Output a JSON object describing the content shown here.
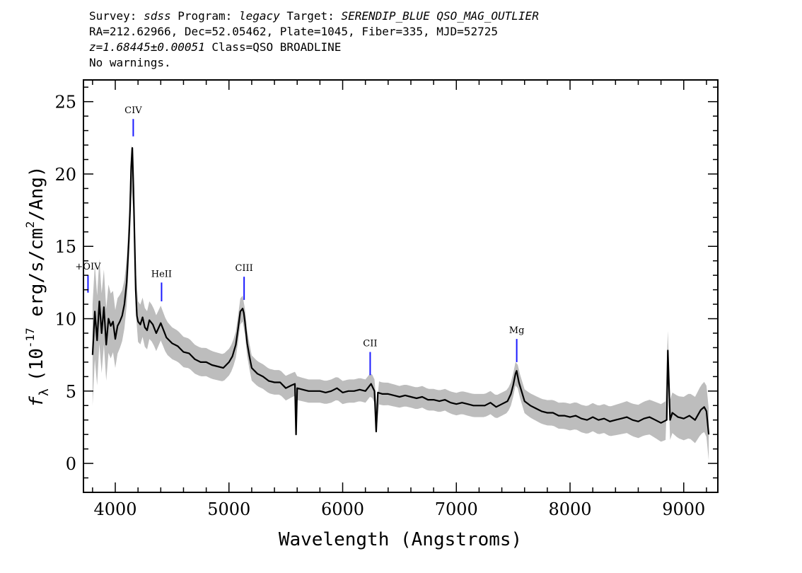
{
  "header": {
    "survey_label": "Survey:",
    "survey": "sdss",
    "program_label": "Program:",
    "program": "legacy",
    "target_label": "Target:",
    "target": "SERENDIP_BLUE QSO_MAG_OUTLIER",
    "coords": "RA=212.62966, Dec=52.05462, Plate=1045, Fiber=335, MJD=52725",
    "redshift": "z=1.68445±0.00051",
    "class_text": "Class=QSO BROADLINE",
    "warnings": "No warnings."
  },
  "chart_data": {
    "type": "line",
    "xlabel": "Wavelength (Angstroms)",
    "ylabel": "f_λ (10^-17 erg/s/cm²/Ang)",
    "ylabel_parts": {
      "f": "f",
      "lambda": "λ",
      "prefix": "(10",
      "exp1": "-17",
      "mid": " erg/s/cm",
      "exp2": "2",
      "suffix": "/Ang)"
    },
    "xlim": [
      3720,
      9300
    ],
    "ylim": [
      -2,
      26.5
    ],
    "x_ticks": [
      4000,
      5000,
      6000,
      7000,
      8000,
      9000
    ],
    "y_ticks": [
      0,
      5,
      10,
      15,
      20,
      25
    ],
    "x_tick_labels": [
      "4000",
      "5000",
      "6000",
      "7000",
      "8000",
      "9000"
    ],
    "y_tick_labels": [
      "0",
      "5",
      "10",
      "15",
      "20",
      "25"
    ],
    "colors": {
      "flux": "#000000",
      "error": "#bdbdbd",
      "lines": "#1a1aff"
    },
    "series": [
      {
        "role": "flux",
        "x": [
          3800,
          3820,
          3840,
          3860,
          3880,
          3900,
          3920,
          3940,
          3960,
          3980,
          4000,
          4020,
          4040,
          4060,
          4080,
          4100,
          4120,
          4130,
          4140,
          4150,
          4160,
          4170,
          4180,
          4190,
          4200,
          4220,
          4240,
          4260,
          4280,
          4300,
          4330,
          4360,
          4400,
          4420,
          4450,
          4500,
          4550,
          4600,
          4650,
          4700,
          4750,
          4800,
          4850,
          4900,
          4950,
          5000,
          5030,
          5060,
          5080,
          5100,
          5120,
          5130,
          5140,
          5160,
          5180,
          5200,
          5250,
          5300,
          5350,
          5400,
          5450,
          5500,
          5550,
          5580,
          5590,
          5600,
          5650,
          5700,
          5750,
          5800,
          5850,
          5900,
          5950,
          6000,
          6050,
          6100,
          6150,
          6200,
          6250,
          6280,
          6295,
          6310,
          6350,
          6400,
          6450,
          6500,
          6550,
          6600,
          6650,
          6700,
          6750,
          6800,
          6850,
          6900,
          6950,
          7000,
          7050,
          7100,
          7150,
          7200,
          7250,
          7300,
          7350,
          7400,
          7450,
          7480,
          7500,
          7520,
          7530,
          7550,
          7600,
          7650,
          7700,
          7750,
          7800,
          7850,
          7900,
          7950,
          8000,
          8050,
          8100,
          8150,
          8200,
          8250,
          8300,
          8350,
          8400,
          8450,
          8500,
          8550,
          8600,
          8650,
          8700,
          8750,
          8800,
          8850,
          8860,
          8880,
          8900,
          8950,
          9000,
          9050,
          9100,
          9150,
          9180,
          9200,
          9220
        ],
        "y": [
          7.5,
          10.5,
          8.5,
          11.2,
          9.0,
          10.8,
          8.2,
          10.0,
          9.5,
          9.8,
          8.6,
          9.5,
          9.8,
          10.2,
          11.0,
          12.5,
          15.5,
          17.5,
          20.5,
          21.8,
          19.0,
          15.5,
          12.0,
          10.2,
          9.8,
          9.6,
          10.1,
          9.4,
          9.2,
          9.9,
          9.6,
          9.0,
          9.7,
          9.3,
          8.7,
          8.3,
          8.1,
          7.7,
          7.6,
          7.2,
          7.0,
          7.0,
          6.8,
          6.7,
          6.6,
          7.0,
          7.4,
          8.2,
          9.3,
          10.5,
          10.7,
          10.4,
          9.8,
          8.3,
          7.4,
          6.6,
          6.2,
          6.0,
          5.7,
          5.6,
          5.6,
          5.2,
          5.4,
          5.5,
          2.0,
          5.2,
          5.1,
          5.0,
          5.0,
          5.0,
          4.9,
          5.0,
          5.2,
          4.9,
          5.0,
          5.0,
          5.1,
          5.0,
          5.5,
          5.0,
          2.2,
          4.9,
          4.8,
          4.8,
          4.7,
          4.6,
          4.7,
          4.6,
          4.5,
          4.6,
          4.4,
          4.4,
          4.3,
          4.4,
          4.2,
          4.1,
          4.2,
          4.1,
          4.0,
          4.0,
          4.0,
          4.2,
          3.9,
          4.1,
          4.3,
          4.8,
          5.4,
          6.2,
          6.4,
          5.6,
          4.3,
          4.0,
          3.8,
          3.6,
          3.5,
          3.5,
          3.3,
          3.3,
          3.2,
          3.3,
          3.1,
          3.0,
          3.2,
          3.0,
          3.1,
          2.9,
          3.0,
          3.1,
          3.2,
          3.0,
          2.9,
          3.1,
          3.2,
          3.0,
          2.8,
          3.0,
          7.8,
          3.0,
          3.5,
          3.2,
          3.1,
          3.3,
          3.0,
          3.7,
          3.9,
          3.6,
          2.0
        ]
      }
    ],
    "error_band": {
      "x": [
        3800,
        3850,
        3900,
        3950,
        4000,
        4050,
        4100,
        4150,
        4200,
        4300,
        4400,
        4500,
        4700,
        4900,
        5100,
        5300,
        5500,
        5700,
        5900,
        6100,
        6300,
        6500,
        6700,
        6900,
        7100,
        7300,
        7500,
        7700,
        7900,
        8100,
        8300,
        8500,
        8700,
        8900,
        9100,
        9220
      ],
      "halfwidth": [
        3.5,
        3.0,
        2.6,
        2.3,
        2.0,
        1.8,
        1.6,
        1.5,
        1.4,
        1.3,
        1.2,
        1.1,
        1.0,
        0.95,
        0.9,
        0.85,
        0.85,
        0.8,
        0.8,
        0.8,
        0.8,
        0.75,
        0.75,
        0.75,
        0.8,
        0.8,
        0.8,
        0.85,
        0.9,
        0.95,
        1.0,
        1.1,
        1.2,
        1.4,
        1.6,
        1.8
      ]
    },
    "emission_lines": [
      {
        "label": "+OIV",
        "x": 3760,
        "y0": 11.8,
        "y1": 13.0
      },
      {
        "label": "CIV",
        "x": 4158,
        "y0": 22.6,
        "y1": 23.8
      },
      {
        "label": "HeII",
        "x": 4407,
        "y0": 11.2,
        "y1": 12.5
      },
      {
        "label": "CIII",
        "x": 5133,
        "y0": 11.3,
        "y1": 12.9
      },
      {
        "label": "CII",
        "x": 6242,
        "y0": 6.1,
        "y1": 7.7
      },
      {
        "label": "Mg",
        "x": 7531,
        "y0": 7.0,
        "y1": 8.6
      }
    ]
  }
}
